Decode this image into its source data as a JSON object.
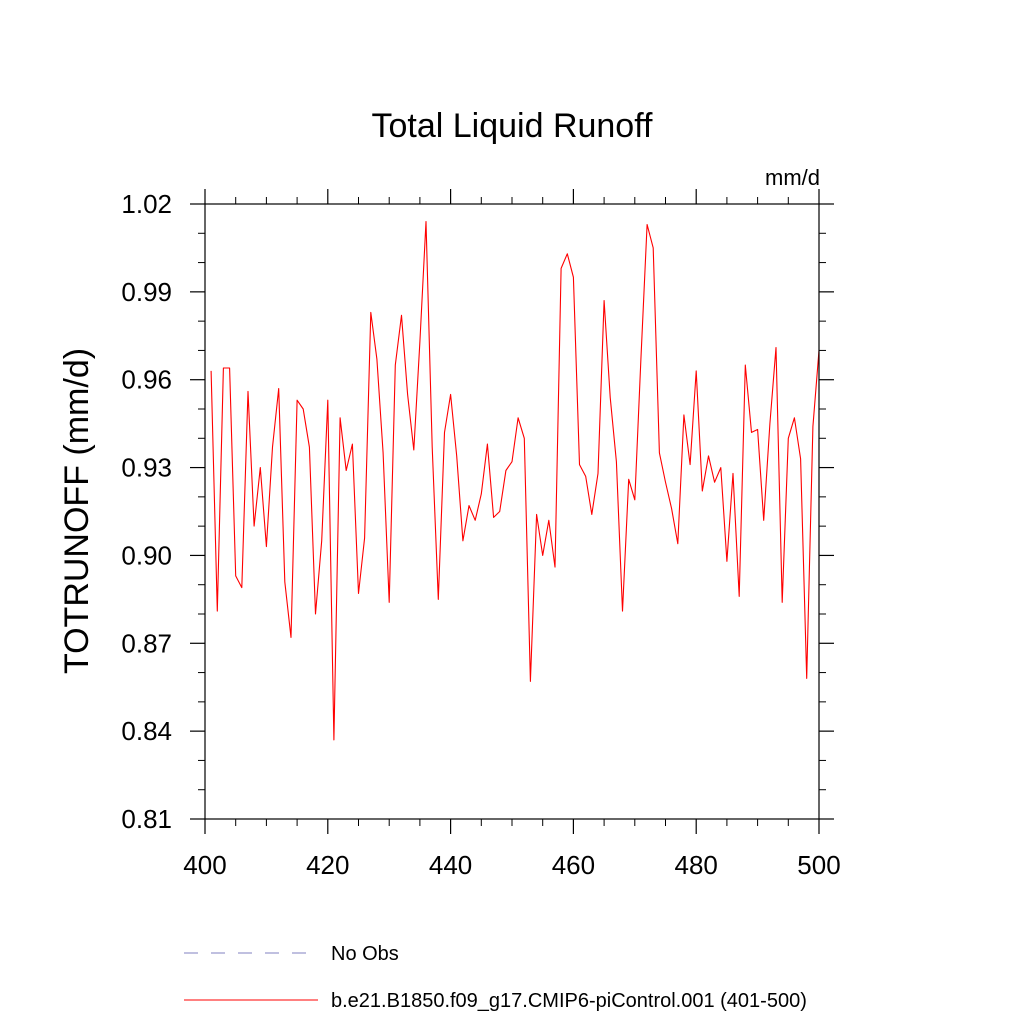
{
  "chart_data": {
    "type": "line",
    "title": "Total Liquid Runoff",
    "units": "mm/d",
    "ylabel": "TOTRUNOFF  (mm/d)",
    "xlabel": "",
    "xlim": [
      400,
      500
    ],
    "ylim": [
      0.81,
      1.02
    ],
    "x_ticks": [
      400,
      420,
      440,
      460,
      480,
      500
    ],
    "x_tick_labels": [
      "400",
      "420",
      "440",
      "460",
      "480",
      "500"
    ],
    "y_ticks": [
      0.81,
      0.84,
      0.87,
      0.9,
      0.93,
      0.96,
      0.99,
      1.02
    ],
    "y_tick_labels": [
      "0.81",
      "0.84",
      "0.87",
      "0.90",
      "0.93",
      "0.96",
      "0.99",
      "1.02"
    ],
    "grid": false,
    "legend_position": "bottom",
    "legend": [
      {
        "label": "No Obs",
        "color": "#8080c0",
        "style": "dashed"
      },
      {
        "label": "b.e21.B1850.f09_g17.CMIP6-piControl.001 (401-500)",
        "color": "#ff0000",
        "style": "solid"
      }
    ],
    "series": [
      {
        "name": "b.e21.B1850.f09_g17.CMIP6-piControl.001 (401-500)",
        "color": "#ff0000",
        "x": [
          401,
          402,
          403,
          404,
          405,
          406,
          407,
          408,
          409,
          410,
          411,
          412,
          413,
          414,
          415,
          416,
          417,
          418,
          419,
          420,
          421,
          422,
          423,
          424,
          425,
          426,
          427,
          428,
          429,
          430,
          431,
          432,
          433,
          434,
          435,
          436,
          437,
          438,
          439,
          440,
          441,
          442,
          443,
          444,
          445,
          446,
          447,
          448,
          449,
          450,
          451,
          452,
          453,
          454,
          455,
          456,
          457,
          458,
          459,
          460,
          461,
          462,
          463,
          464,
          465,
          466,
          467,
          468,
          469,
          470,
          471,
          472,
          473,
          474,
          475,
          476,
          477,
          478,
          479,
          480,
          481,
          482,
          483,
          484,
          485,
          486,
          487,
          488,
          489,
          490,
          491,
          492,
          493,
          494,
          495,
          496,
          497,
          498,
          499,
          500
        ],
        "values": [
          0.963,
          0.881,
          0.964,
          0.964,
          0.893,
          0.889,
          0.956,
          0.91,
          0.93,
          0.903,
          0.937,
          0.957,
          0.891,
          0.872,
          0.953,
          0.95,
          0.937,
          0.88,
          0.905,
          0.953,
          0.837,
          0.947,
          0.929,
          0.938,
          0.887,
          0.906,
          0.983,
          0.967,
          0.935,
          0.884,
          0.965,
          0.982,
          0.955,
          0.936,
          0.973,
          1.014,
          0.937,
          0.885,
          0.942,
          0.955,
          0.934,
          0.905,
          0.917,
          0.912,
          0.921,
          0.938,
          0.913,
          0.915,
          0.929,
          0.932,
          0.947,
          0.94,
          0.857,
          0.914,
          0.9,
          0.912,
          0.896,
          0.998,
          1.003,
          0.995,
          0.931,
          0.927,
          0.914,
          0.928,
          0.987,
          0.954,
          0.932,
          0.881,
          0.926,
          0.919,
          0.967,
          1.013,
          1.005,
          0.935,
          0.925,
          0.916,
          0.904,
          0.948,
          0.931,
          0.963,
          0.922,
          0.934,
          0.925,
          0.93,
          0.898,
          0.928,
          0.886,
          0.965,
          0.942,
          0.943,
          0.912,
          0.945,
          0.971,
          0.884,
          0.94,
          0.947,
          0.933,
          0.858,
          0.944,
          0.97
        ]
      }
    ]
  }
}
